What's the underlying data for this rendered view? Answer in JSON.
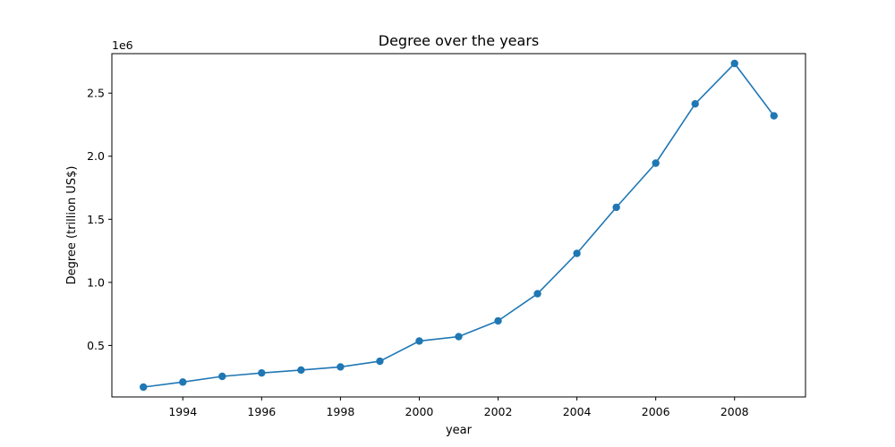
{
  "chart_data": {
    "type": "line",
    "title": "Degree over the years",
    "xlabel": "year",
    "ylabel": "Degree (trillion US$)",
    "y_offset_text": "1e6",
    "x": [
      1993,
      1994,
      1995,
      1996,
      1997,
      1998,
      1999,
      2000,
      2001,
      2002,
      2003,
      2004,
      2005,
      2006,
      2007,
      2008,
      2009
    ],
    "series": [
      {
        "values": [
          170000,
          210000,
          255000,
          282000,
          305000,
          330000,
          375000,
          535000,
          570000,
          695000,
          910000,
          1230000,
          1595000,
          1945000,
          2415000,
          2735000,
          2320000
        ],
        "color": "#1f77b4",
        "marker": "circle"
      }
    ],
    "xlim": [
      1992.2,
      2009.8
    ],
    "ylim": [
      92000,
      2813000
    ],
    "x_ticks": [
      1994,
      1996,
      1998,
      2000,
      2002,
      2004,
      2006,
      2008
    ],
    "x_tick_labels": [
      "1994",
      "1996",
      "1998",
      "2000",
      "2002",
      "2004",
      "2006",
      "2008"
    ],
    "y_ticks": [
      500000,
      1000000,
      1500000,
      2000000,
      2500000
    ],
    "y_tick_labels": [
      "0.5",
      "1.0",
      "1.5",
      "2.0",
      "2.5"
    ],
    "grid": false,
    "legend": "none"
  }
}
